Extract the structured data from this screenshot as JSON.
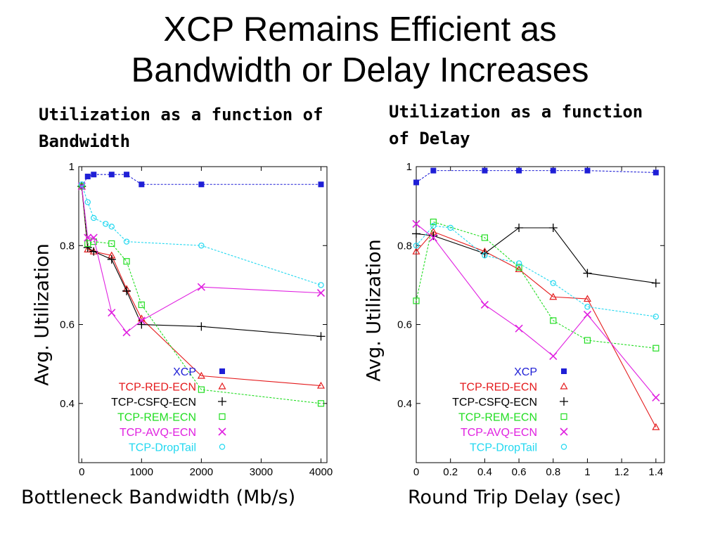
{
  "slide": {
    "title_line1": "XCP Remains Efficient as",
    "title_line2": "Bandwidth or Delay Increases"
  },
  "colors": {
    "XCP": "#1f1fd6",
    "TCP-RED-ECN": "#e41a1c",
    "TCP-CSFQ-ECN": "#000000",
    "TCP-REM-ECN": "#22dd22",
    "TCP-AVQ-ECN": "#e020e0",
    "TCP-DropTail": "#22d8f0"
  },
  "chart_data": [
    {
      "type": "line",
      "heading_line1": "Utilization as a function of",
      "heading_line2": "Bandwidth",
      "xlabel": "Bottleneck Bandwidth (Mb/s)",
      "ylabel": "Avg. Utilization",
      "xlim": [
        -50,
        4100
      ],
      "ylim": [
        0.25,
        1.0
      ],
      "xticks": [
        0,
        1000,
        2000,
        3000,
        4000
      ],
      "yticks": [
        0.4,
        0.6,
        0.8,
        1
      ],
      "ytick_labels": [
        "0.4",
        "0.6",
        "0.8",
        "1"
      ],
      "grid": false,
      "legend_position": "bottom-right",
      "series": [
        {
          "name": "XCP",
          "marker": "filled-square",
          "line": "dotted",
          "x": [
            0,
            100,
            200,
            500,
            750,
            1000,
            2000,
            4000
          ],
          "y": [
            0.95,
            0.975,
            0.98,
            0.98,
            0.98,
            0.955,
            0.955,
            0.955
          ]
        },
        {
          "name": "TCP-RED-ECN",
          "marker": "triangle",
          "line": "solid",
          "x": [
            0,
            100,
            200,
            500,
            750,
            1000,
            2000,
            4000
          ],
          "y": [
            0.95,
            0.79,
            0.785,
            0.775,
            0.69,
            0.615,
            0.47,
            0.445
          ]
        },
        {
          "name": "TCP-CSFQ-ECN",
          "marker": "plus",
          "line": "solid",
          "x": [
            0,
            100,
            200,
            500,
            750,
            1000,
            2000,
            4000
          ],
          "y": [
            0.95,
            0.795,
            0.785,
            0.765,
            0.685,
            0.6,
            0.595,
            0.57
          ]
        },
        {
          "name": "TCP-REM-ECN",
          "marker": "square",
          "line": "dotted",
          "x": [
            0,
            100,
            200,
            500,
            750,
            1000,
            2000,
            4000
          ],
          "y": [
            0.95,
            0.805,
            0.81,
            0.805,
            0.76,
            0.65,
            0.435,
            0.4
          ]
        },
        {
          "name": "TCP-AVQ-ECN",
          "marker": "x",
          "line": "solid",
          "x": [
            0,
            100,
            200,
            500,
            750,
            1000,
            2000,
            4000
          ],
          "y": [
            0.95,
            0.82,
            0.82,
            0.63,
            0.58,
            0.61,
            0.695,
            0.68
          ]
        },
        {
          "name": "TCP-DropTail",
          "marker": "circle",
          "line": "dotted",
          "x": [
            0,
            100,
            200,
            400,
            500,
            750,
            2000,
            4000
          ],
          "y": [
            0.955,
            0.91,
            0.87,
            0.855,
            0.848,
            0.81,
            0.8,
            0.7
          ]
        }
      ]
    },
    {
      "type": "line",
      "heading_line1": "Utilization as a function",
      "heading_line2": "of Delay",
      "xlabel": "Round Trip Delay (sec)",
      "ylabel": "Avg. Utilization",
      "xlim": [
        0,
        1.45
      ],
      "ylim": [
        0.25,
        1.0
      ],
      "xticks": [
        0,
        0.2,
        0.4,
        0.6,
        0.8,
        1,
        1.2,
        1.4
      ],
      "yticks": [
        0.4,
        0.6,
        0.8,
        1
      ],
      "ytick_labels": [
        "0.4",
        "0.6",
        "0.8",
        "1"
      ],
      "grid": false,
      "legend_position": "bottom-right",
      "series": [
        {
          "name": "XCP",
          "marker": "filled-square",
          "line": "dotted",
          "x": [
            0,
            0.1,
            0.4,
            0.6,
            0.8,
            1.0,
            1.4
          ],
          "y": [
            0.96,
            0.99,
            0.99,
            0.99,
            0.99,
            0.99,
            0.985
          ]
        },
        {
          "name": "TCP-RED-ECN",
          "marker": "triangle",
          "line": "solid",
          "x": [
            0,
            0.1,
            0.4,
            0.6,
            0.8,
            1.0,
            1.4
          ],
          "y": [
            0.785,
            0.835,
            0.785,
            0.74,
            0.67,
            0.665,
            0.34
          ]
        },
        {
          "name": "TCP-CSFQ-ECN",
          "marker": "plus",
          "line": "solid",
          "x": [
            0,
            0.1,
            0.4,
            0.6,
            0.8,
            1.0,
            1.4
          ],
          "y": [
            0.83,
            0.825,
            0.78,
            0.845,
            0.845,
            0.73,
            0.705
          ]
        },
        {
          "name": "TCP-REM-ECN",
          "marker": "square",
          "line": "dotted",
          "x": [
            0,
            0.1,
            0.4,
            0.6,
            0.8,
            1.0,
            1.4
          ],
          "y": [
            0.66,
            0.86,
            0.82,
            0.745,
            0.61,
            0.56,
            0.54
          ]
        },
        {
          "name": "TCP-AVQ-ECN",
          "marker": "x",
          "line": "solid",
          "x": [
            0,
            0.1,
            0.4,
            0.6,
            0.8,
            1.0,
            1.4
          ],
          "y": [
            0.855,
            0.82,
            0.65,
            0.59,
            0.52,
            0.625,
            0.415
          ]
        },
        {
          "name": "TCP-DropTail",
          "marker": "circle",
          "line": "dotted",
          "x": [
            0,
            0.1,
            0.2,
            0.4,
            0.6,
            0.8,
            1.0,
            1.4
          ],
          "y": [
            0.8,
            0.85,
            0.845,
            0.775,
            0.755,
            0.705,
            0.645,
            0.62
          ]
        }
      ]
    }
  ]
}
